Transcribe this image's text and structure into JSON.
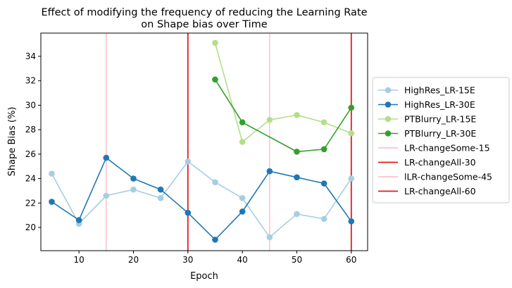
{
  "chart_data": {
    "type": "line",
    "title_line1": "Effect of modifying the frequency of reducing the Learning Rate",
    "title_line2": "on Shape bias over Time",
    "xlabel": "Epoch",
    "ylabel": "Shape Bias (%)",
    "xlim": [
      3,
      63
    ],
    "ylim": [
      18.1,
      35.9
    ],
    "xticks": [
      10,
      20,
      30,
      40,
      50,
      60
    ],
    "yticks": [
      20,
      22,
      24,
      26,
      28,
      30,
      32,
      34
    ],
    "grid": false,
    "legend_position": "center-right-outside",
    "series": [
      {
        "name": "HighRes_LR-15E",
        "color": "#a6cee3",
        "x": [
          5,
          10,
          15,
          20,
          25,
          30,
          35,
          40,
          45,
          50,
          55,
          60
        ],
        "y": [
          24.4,
          20.3,
          22.6,
          23.1,
          22.4,
          25.4,
          23.7,
          22.4,
          19.2,
          21.1,
          20.7,
          24.0
        ]
      },
      {
        "name": "HighRes_LR-30E",
        "color": "#1f78b4",
        "x": [
          5,
          10,
          15,
          20,
          25,
          30,
          35,
          40,
          45,
          50,
          55,
          60
        ],
        "y": [
          22.1,
          20.6,
          25.7,
          24.0,
          23.1,
          21.2,
          19.0,
          21.3,
          24.6,
          24.1,
          23.6,
          20.5
        ]
      },
      {
        "name": "PTBlurry_LR-15E",
        "color": "#b2df8a",
        "x": [
          35,
          40,
          45,
          50,
          55,
          60
        ],
        "y": [
          35.1,
          27.0,
          28.8,
          29.2,
          28.6,
          27.7
        ]
      },
      {
        "name": "PTBlurry_LR-30E",
        "color": "#33a02c",
        "x": [
          35,
          40,
          45,
          50,
          55,
          60
        ],
        "y": [
          32.1,
          28.6,
          null,
          26.2,
          26.4,
          29.8
        ]
      }
    ],
    "vlines": [
      {
        "name": "LR-changeSome-15",
        "x": 15,
        "color": "#ffc0cb"
      },
      {
        "name": "LR-changeAll-30",
        "x": 30,
        "color": "#e31a1c"
      },
      {
        "name": "lLR-changeSome-45",
        "x": 45,
        "color": "#ffc0cb"
      },
      {
        "name": "LR-changeAll-60",
        "x": 60,
        "color": "#e31a1c"
      }
    ]
  }
}
